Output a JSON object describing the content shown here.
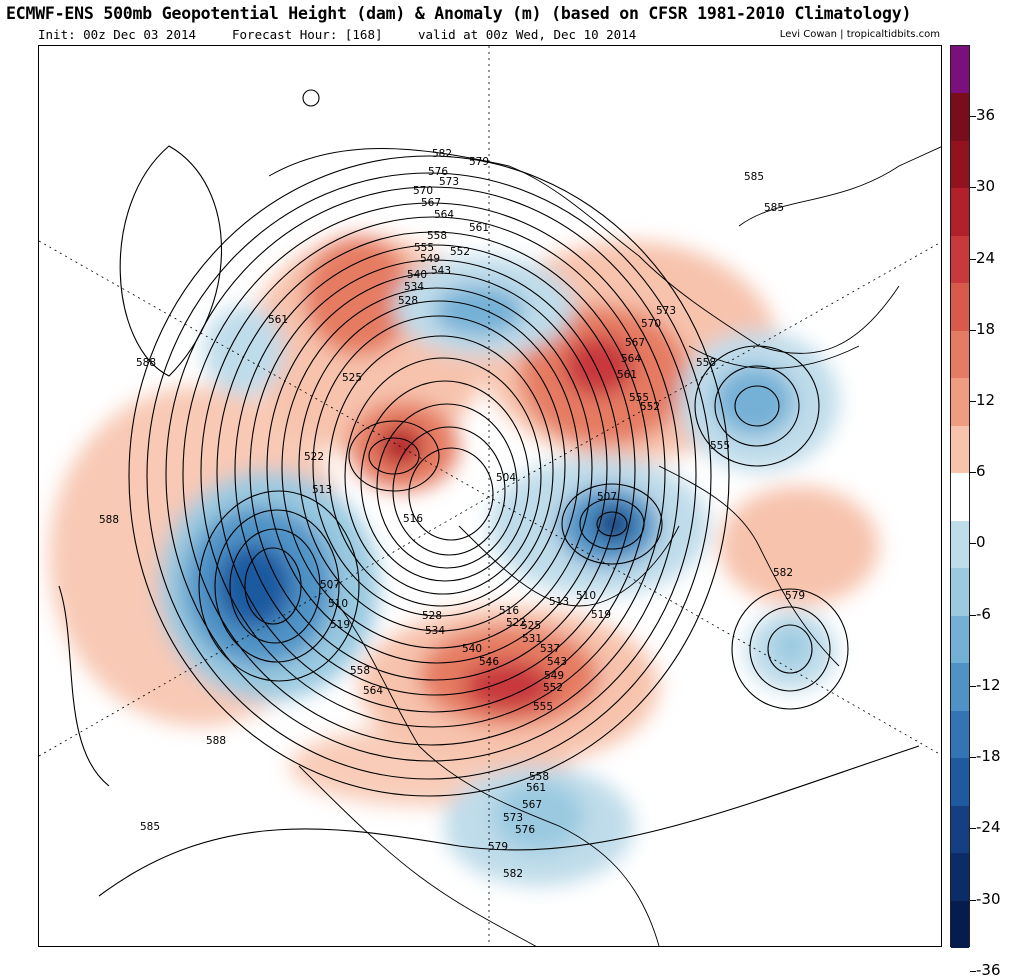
{
  "header": {
    "title": "ECMWF-ENS 500mb Geopotential Height (dam) & Anomaly (m) (based on CFSR 1981-2010 Climatology)",
    "init": "Init: 00z Dec 03 2014",
    "forecast_hour": "Forecast Hour: [168]",
    "valid": "valid at 00z Wed, Dec 10 2014",
    "credit": "Levi Cowan | tropicaltidbits.com"
  },
  "colorbar": {
    "labels": [
      "36",
      "30",
      "24",
      "18",
      "12",
      "6",
      "0",
      "-6",
      "-12",
      "-18",
      "-24",
      "-30",
      "-36"
    ],
    "colors": [
      "#7b0f7b",
      "#7a0d1c",
      "#93121f",
      "#b2202b",
      "#c8393c",
      "#d85a4a",
      "#e57b62",
      "#ef9c80",
      "#f7c3ad",
      "#ffffff",
      "#bfdcea",
      "#9ac9e0",
      "#74b0d6",
      "#4f93c6",
      "#3274b4",
      "#1f5aa0",
      "#143f80",
      "#0b2c66",
      "#061c4e"
    ]
  },
  "map": {
    "contour_labels": [
      "582",
      "579",
      "576",
      "573",
      "570",
      "567",
      "564",
      "561",
      "558",
      "555",
      "552",
      "549",
      "543",
      "540",
      "534",
      "528",
      "561",
      "588",
      "525",
      "522",
      "513",
      "516",
      "504",
      "507",
      "510",
      "519",
      "528",
      "534",
      "540",
      "546",
      "549",
      "552",
      "555",
      "558",
      "564",
      "507",
      "510",
      "519",
      "513",
      "516",
      "522",
      "525",
      "531",
      "537",
      "543",
      "573",
      "570",
      "567",
      "564",
      "561",
      "555",
      "552",
      "558",
      "555",
      "585",
      "585",
      "582",
      "579",
      "588",
      "588",
      "585",
      "558",
      "561",
      "567",
      "573",
      "576",
      "579",
      "582"
    ]
  }
}
